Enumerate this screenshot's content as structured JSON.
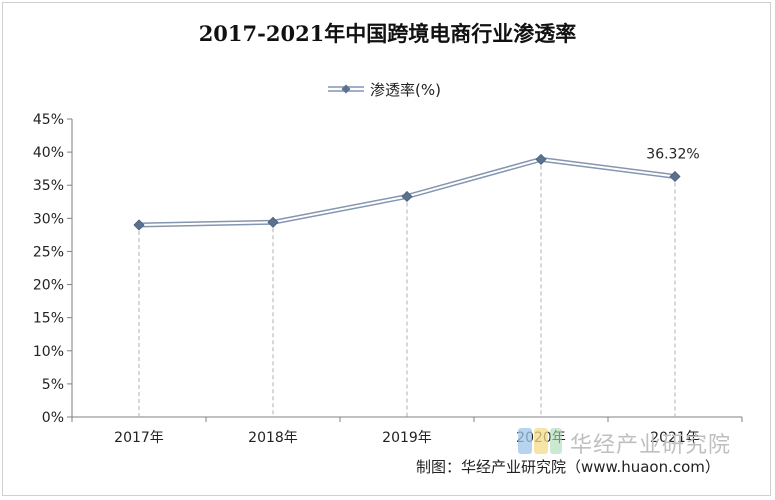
{
  "chart_data": {
    "type": "line",
    "title": "2017-2021年中国跨境电商行业渗透率",
    "categories": [
      "2017年",
      "2018年",
      "2019年",
      "2020年",
      "2021年"
    ],
    "series": [
      {
        "name": "渗透率(%)",
        "values": [
          29.0,
          29.4,
          33.3,
          38.9,
          36.32
        ]
      }
    ],
    "data_labels": [
      {
        "index": 4,
        "text": "36.32%"
      }
    ],
    "y_ticks": [
      "0%",
      "5%",
      "10%",
      "15%",
      "20%",
      "25%",
      "30%",
      "35%",
      "40%",
      "45%"
    ],
    "ylim": [
      0,
      45
    ],
    "y_step": 5,
    "xlabel": "",
    "ylabel": "",
    "grid": false,
    "vertical_drop_lines": true,
    "legend_position": "top-center",
    "colors": {
      "line": "#8496b0",
      "marker": "#5b7190",
      "axis": "#808080"
    }
  },
  "credit": "制图：华经产业研究院（www.huaon.com）",
  "watermark": "华经产业研究院"
}
